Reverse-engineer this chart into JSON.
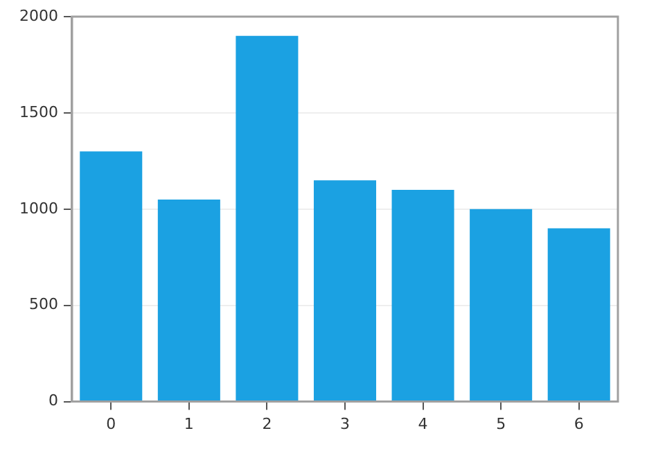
{
  "chart_data": {
    "type": "bar",
    "categories": [
      "0",
      "1",
      "2",
      "3",
      "4",
      "5",
      "6"
    ],
    "values": [
      1300,
      1050,
      1900,
      1150,
      1100,
      1000,
      900
    ],
    "color": "#1ba1e2",
    "ylim": [
      0,
      2000
    ],
    "yticks": [
      0,
      500,
      1000,
      1500,
      2000
    ],
    "grid": "y",
    "legend": false
  }
}
